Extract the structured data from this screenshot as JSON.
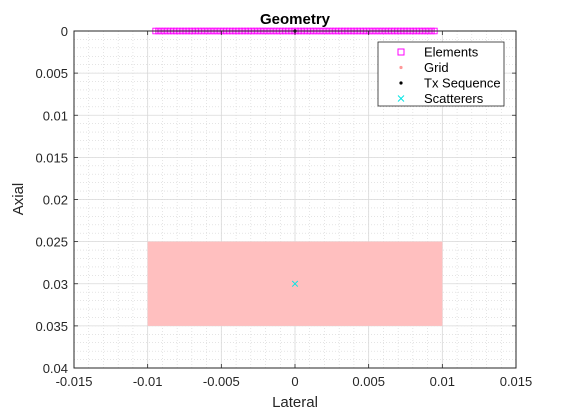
{
  "chart_data": {
    "type": "scatter",
    "title": "Geometry",
    "xlabel": "Lateral",
    "ylabel": "Axial",
    "xlim": [
      -0.015,
      0.015
    ],
    "ylim": [
      0,
      0.04
    ],
    "y_direction": "reversed",
    "x_ticks": [
      "-0.015",
      "-0.01",
      "-0.005",
      "0",
      "0.005",
      "0.01",
      "0.015"
    ],
    "y_ticks": [
      "0",
      "0.005",
      "0.01",
      "0.015",
      "0.02",
      "0.025",
      "0.03",
      "0.035",
      "0.04"
    ],
    "grid": true,
    "minor_grid": true,
    "legend_position": "top-right",
    "legend": [
      {
        "name": "Elements",
        "color": "#ff00ff",
        "marker": "square"
      },
      {
        "name": "Grid",
        "color": "#ff9999",
        "marker": "dot"
      },
      {
        "name": "Tx Sequence",
        "color": "#000000",
        "marker": "dot"
      },
      {
        "name": "Scatterers",
        "color": "#00e5e5",
        "marker": "x"
      }
    ],
    "series": [
      {
        "name": "Elements",
        "marker": "square",
        "color": "#ff00ff",
        "element_pitch": 0.0002,
        "x_range": [
          -0.0095,
          0.0095
        ],
        "y": 0
      },
      {
        "name": "Grid",
        "marker": "dot",
        "color": "#ffbfbf",
        "x_range": [
          -0.01,
          0.01
        ],
        "y_range": [
          0.025,
          0.035
        ]
      },
      {
        "name": "Tx Sequence",
        "marker": "dot",
        "color": "#000000",
        "points": [
          [
            0,
            0
          ]
        ]
      },
      {
        "name": "Scatterers",
        "marker": "x",
        "color": "#00e5e5",
        "points": [
          [
            0,
            0.03
          ]
        ]
      }
    ]
  }
}
